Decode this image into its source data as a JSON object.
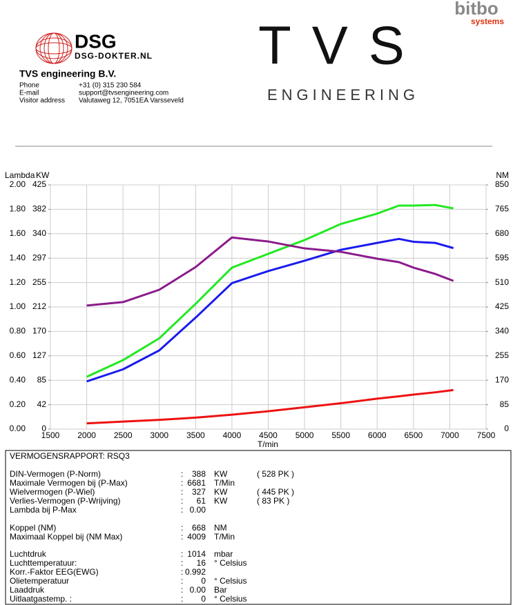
{
  "header": {
    "brand": "bitbo",
    "brand_sub": "systems",
    "dsg": "DSG",
    "dsg_site": "DSG-DOKTER.NL",
    "tvs": "TVS",
    "tvs_sub": "ENGINEERING",
    "company": "TVS engineering B.V.",
    "contacts": [
      [
        "Phone",
        "+31 (0) 315 230 584"
      ],
      [
        "E-mail",
        "support@tvsengineering.com"
      ],
      [
        "Visitor address",
        "Valutaweg 12,  7051EA  Varsseveld"
      ]
    ]
  },
  "chart_data": {
    "type": "line",
    "axis_labels": {
      "y3": "Lambda",
      "y": "KW",
      "y2": "NM",
      "x": "T/min"
    },
    "x": [
      2000,
      2500,
      3000,
      3500,
      4000,
      4500,
      5000,
      5500,
      6000,
      6300,
      6500,
      6800,
      7050
    ],
    "xlim": [
      1500,
      7500
    ],
    "xticks": [
      1500,
      2000,
      2500,
      3000,
      3500,
      4000,
      4500,
      5000,
      5500,
      6000,
      6500,
      7000,
      7500
    ],
    "ylim": [
      0,
      425
    ],
    "yticks": [
      0,
      {
        "value": 42.5,
        "label": "42"
      },
      85,
      {
        "value": 127.5,
        "label": "127"
      },
      170,
      {
        "value": 212.5,
        "label": "212"
      },
      255,
      {
        "value": 297.5,
        "label": "297"
      },
      340,
      {
        "value": 382.5,
        "label": "382"
      },
      425
    ],
    "y2lim": [
      0,
      850
    ],
    "y2ticks": [
      0,
      85,
      170,
      255,
      340,
      425,
      510,
      595,
      680,
      765,
      850
    ],
    "y3lim": [
      0,
      2
    ],
    "y3ticks": [
      {
        "value": 0,
        "label": "0.00"
      },
      {
        "value": 0.2,
        "label": "0.20"
      },
      {
        "value": 0.4,
        "label": "0.40"
      },
      {
        "value": 0.6,
        "label": "0.60"
      },
      {
        "value": 0.8,
        "label": "0.80"
      },
      {
        "value": 1,
        "label": "1.00"
      },
      {
        "value": 1.2,
        "label": "1.20"
      },
      {
        "value": 1.4,
        "label": "1.40"
      },
      {
        "value": 1.6,
        "label": "1.60"
      },
      {
        "value": 1.8,
        "label": "1.80"
      },
      {
        "value": 2,
        "label": "2.00"
      }
    ],
    "grid": true,
    "series": [
      {
        "name": "DIN-Vermogen",
        "color": "#22e822",
        "values": [
          91,
          120,
          158,
          218,
          281,
          305,
          329,
          357,
          375,
          389,
          389,
          390,
          384
        ]
      },
      {
        "name": "Wielvermogen",
        "color": "#1a1aee",
        "values": [
          83,
          104,
          137,
          194,
          254,
          275,
          293,
          312,
          324,
          331,
          326,
          324,
          315
        ]
      },
      {
        "name": "Verlies-Vermogen",
        "color": "#ee1111",
        "values": [
          10,
          13,
          16,
          20,
          25,
          31,
          38,
          45,
          53,
          57,
          60,
          64,
          68
        ]
      },
      {
        "name": "Koppel",
        "color": "#8b1a8b",
        "axis": "y2",
        "values": [
          430,
          442,
          485,
          564,
          667,
          653,
          629,
          617,
          593,
          581,
          562,
          540,
          516
        ]
      }
    ]
  },
  "report": {
    "title": "VERMOGENSRAPPORT: RSQ3",
    "rows": [
      {
        "label": "DIN-Vermogen (P-Norm)",
        "value": "388",
        "unit": "KW",
        "extra": "( 528 PK )",
        "color": "#22cc22"
      },
      {
        "label": "Maximale Vermogen bij (P-Max)",
        "value": "6681",
        "unit": "T/Min",
        "color": "#22cc22"
      },
      {
        "label": "Wielvermogen (P-Wiel)",
        "value": "327",
        "unit": "KW",
        "extra": "( 445 PK )",
        "color": "#1a1aee"
      },
      {
        "label": "Verlies-Vermogen (P-Wrijving)",
        "value": "61",
        "unit": "KW",
        "extra": "( 83 PK )",
        "color": "#ee1111"
      },
      {
        "label": "Lambda bij P-Max",
        "value": "0.00",
        "color": "#ff8800"
      },
      {
        "label": "Koppel (NM)",
        "value": "668",
        "unit": "NM",
        "color": "#8b1a8b"
      },
      {
        "label": "Maximaal Koppel bij (NM Max)",
        "value": "4009",
        "unit": "T/Min",
        "color": "#8b1a8b"
      },
      {
        "label": "Luchtdruk",
        "value": "1014",
        "unit": "mbar",
        "color": "#000000"
      },
      {
        "label": "Luchttemperatuur:",
        "value": "16",
        "unit": "° Celsius",
        "color": "#000000"
      },
      {
        "label": "Korr.-Faktor EEG(EWG)",
        "value": "0.992",
        "color": "#000000"
      },
      {
        "label": "Olietemperatuur",
        "value": "0",
        "unit": "° Celsius",
        "color": "#000000"
      },
      {
        "label": "Laaddruk",
        "value": "0.00",
        "unit": "Bar",
        "color": "#000000"
      },
      {
        "label": "Uitlaatgastemp. :",
        "value": "0",
        "unit": "° Celsius",
        "color": "#000000"
      }
    ]
  }
}
